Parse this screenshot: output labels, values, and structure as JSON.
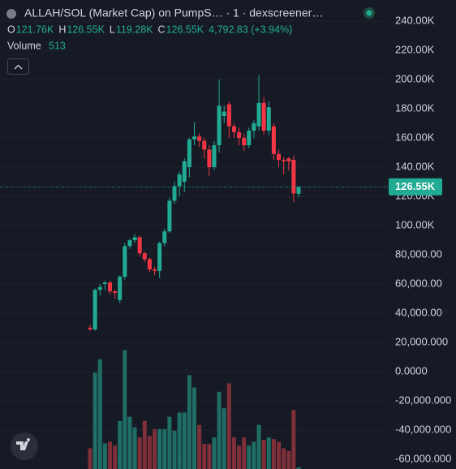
{
  "header": {
    "title": "ALLAH/SOL (Market Cap) on PumpS… · 1 · dexscreener…",
    "ohlc": [
      {
        "key": "O",
        "text": "121.76K"
      },
      {
        "key": "H",
        "text": "126.55K"
      },
      {
        "key": "L",
        "text": "119.28K"
      },
      {
        "key": "C",
        "text": "126.55K"
      }
    ],
    "change": "4,792.83 (+3.94%)",
    "volume_label": "Volume",
    "volume_value": "513"
  },
  "chart_data": {
    "type": "candlestick",
    "open": [
      30000,
      29000,
      56000,
      60000,
      61000,
      55000,
      49000,
      65000,
      86000,
      90000,
      92000,
      81000,
      77000,
      70000,
      69000,
      88000,
      96000,
      117000,
      127000,
      130000,
      140000,
      159000,
      161000,
      158000,
      152000,
      140000,
      155000,
      175000,
      183000,
      168000,
      164000,
      160000,
      155000,
      165000,
      168000,
      184000,
      165000,
      168000,
      149000,
      145000,
      146000,
      145000,
      121760
    ],
    "high": [
      32000,
      57000,
      60000,
      62000,
      62000,
      56000,
      66000,
      88000,
      91000,
      94000,
      93000,
      82000,
      78000,
      72000,
      89000,
      98000,
      119000,
      130000,
      137000,
      146000,
      160000,
      171000,
      163000,
      160000,
      155000,
      158000,
      200000,
      182000,
      185000,
      170000,
      167000,
      163000,
      167000,
      172000,
      203000,
      188000,
      185000,
      170000,
      152000,
      147000,
      147000,
      148000,
      126550
    ],
    "low": [
      28000,
      28000,
      52000,
      56000,
      53000,
      50000,
      47000,
      63000,
      84000,
      88000,
      79000,
      75000,
      68000,
      66000,
      64000,
      86000,
      95000,
      115000,
      120000,
      123000,
      133000,
      155000,
      154000,
      146000,
      134000,
      138000,
      150000,
      170000,
      160000,
      160000,
      155000,
      151000,
      153000,
      160000,
      165000,
      162000,
      162000,
      145000,
      140000,
      135000,
      138000,
      116000,
      119280
    ],
    "close": [
      29000,
      56000,
      58000,
      61000,
      55000,
      54000,
      65000,
      86000,
      90000,
      92000,
      81000,
      77000,
      70000,
      69000,
      88000,
      96000,
      117000,
      127000,
      135000,
      144000,
      159000,
      161000,
      158000,
      152000,
      140000,
      155000,
      182000,
      178000,
      168000,
      164000,
      160000,
      155000,
      165000,
      170000,
      184000,
      165000,
      181000,
      149000,
      145000,
      144000,
      144000,
      122000,
      126550
    ],
    "volume": [
      6400,
      29700,
      33800,
      7900,
      8400,
      7200,
      14800,
      36600,
      16100,
      12800,
      9700,
      14800,
      10200,
      12300,
      12300,
      12300,
      16100,
      11800,
      17400,
      17400,
      28900,
      25100,
      13600,
      7700,
      7700,
      9700,
      23800,
      18700,
      26400,
      9700,
      7200,
      9700,
      7200,
      8400,
      13600,
      9000,
      9700,
      9200,
      8400,
      6400,
      5600,
      18200,
      513
    ],
    "volume_lim": [
      0,
      40000
    ],
    "ylim": [
      -66667,
      254444
    ],
    "yticks": [
      {
        "value": 240000,
        "label": "240.00K"
      },
      {
        "value": 220000,
        "label": "220.00K"
      },
      {
        "value": 200000,
        "label": "200.00K"
      },
      {
        "value": 180000,
        "label": "180.00K"
      },
      {
        "value": 160000,
        "label": "160.00K"
      },
      {
        "value": 140000,
        "label": "140.00K"
      },
      {
        "value": 120000,
        "label": "120.00K"
      },
      {
        "value": 100000,
        "label": "100.00K"
      },
      {
        "value": 80000,
        "label": "80,000.00"
      },
      {
        "value": 60000,
        "label": "60,000.00"
      },
      {
        "value": 40000,
        "label": "40,000.00"
      },
      {
        "value": 20000,
        "label": "20,000.000"
      },
      {
        "value": 0,
        "label": "0.0000"
      },
      {
        "value": -20000,
        "label": "-20,000.000"
      },
      {
        "value": -40000,
        "label": "-40,000.000"
      },
      {
        "value": -60000,
        "label": "-60,000.000"
      }
    ],
    "last_price": {
      "value": 126550,
      "label": "126.55K"
    },
    "grid": true,
    "up_color": "#22ab94",
    "down_color": "#f23645",
    "volume_up_color": "#1f6e66",
    "volume_down_color": "#7e2f38"
  }
}
